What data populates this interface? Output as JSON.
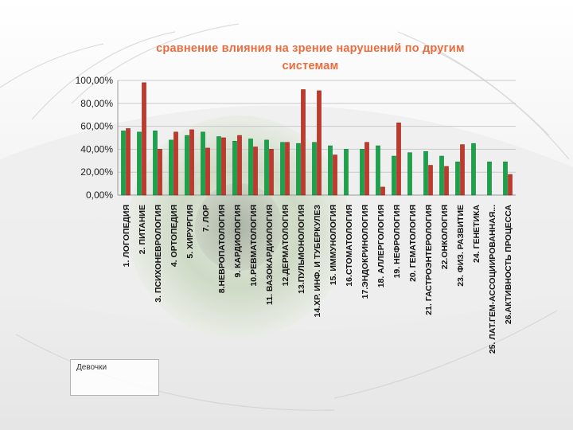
{
  "colors": {
    "series1": "#1aa34a",
    "series2": "#c0392b",
    "title": "#ec6b3d"
  },
  "legend": {
    "label": "Девочки"
  },
  "chart_data": {
    "type": "bar",
    "title_line1": "сравнение влияния на зрение нарушений по другим",
    "title_line2": "системам",
    "ylim": [
      0,
      100
    ],
    "yticks": [
      "100,00%",
      "80,00%",
      "60,00%",
      "40,00%",
      "20,00%",
      "0,00%"
    ],
    "categories": [
      "1.  ЛОГОПЕДИЯ",
      "2.  ПИТАНИЕ",
      "3. ПСИХОНЕВРОЛОГИЯ",
      "4. ОРТОПЕДИЯ",
      "5. ХИРУРГИЯ",
      "7. ЛОР",
      "8.НЕВРОПАТОЛОГИЯ",
      "9. КАРДИОЛОГИЯ",
      "10.РЕВМАТОЛОГИЯ",
      "11. ВАЗОКАРДИОЛОГИЯ",
      "12.ДЕРМАТОЛОГИЯ",
      "13.ПУЛЬМОНОЛОГИЯ",
      "14.ХР. ИНФ. И ТУБЕРКУЛЕЗ",
      "15.  ИММУНОЛОГИЯ",
      "16.СТОМАТОЛОГИЯ",
      "17.ЭНДОКРИНОЛОГИЯ",
      "18. АЛЛЕРГОЛОГИЯ",
      "19. НЕФРОЛОГИЯ",
      "20. ГЕМАТОЛОГИЯ",
      "21. ГАСТРОЭНТЕРОЛОГИЯ",
      "22.ОНКОЛОГИЯ",
      "23. ФИЗ. РАЗВИТИЕ",
      "24. ГЕНЕТИКА",
      "25. ЛАТ.ГЕМ-АССОЦИИРОВАННАЯ...",
      "26.АКТИВНОСТЬ ПРОЦЕССА"
    ],
    "series": [
      {
        "name": "green",
        "values": [
          56,
          55,
          56,
          48,
          52,
          55,
          51,
          47,
          49,
          48,
          46,
          45,
          46,
          43,
          40,
          40,
          43,
          34,
          37,
          38,
          34,
          29,
          45,
          29,
          29
        ]
      },
      {
        "name": "red",
        "values": [
          58,
          98,
          40,
          55,
          57,
          41,
          50,
          52,
          42,
          40,
          46,
          92,
          91,
          35,
          0,
          46,
          7,
          63,
          0,
          26,
          25,
          44,
          0,
          0,
          18
        ]
      }
    ]
  }
}
